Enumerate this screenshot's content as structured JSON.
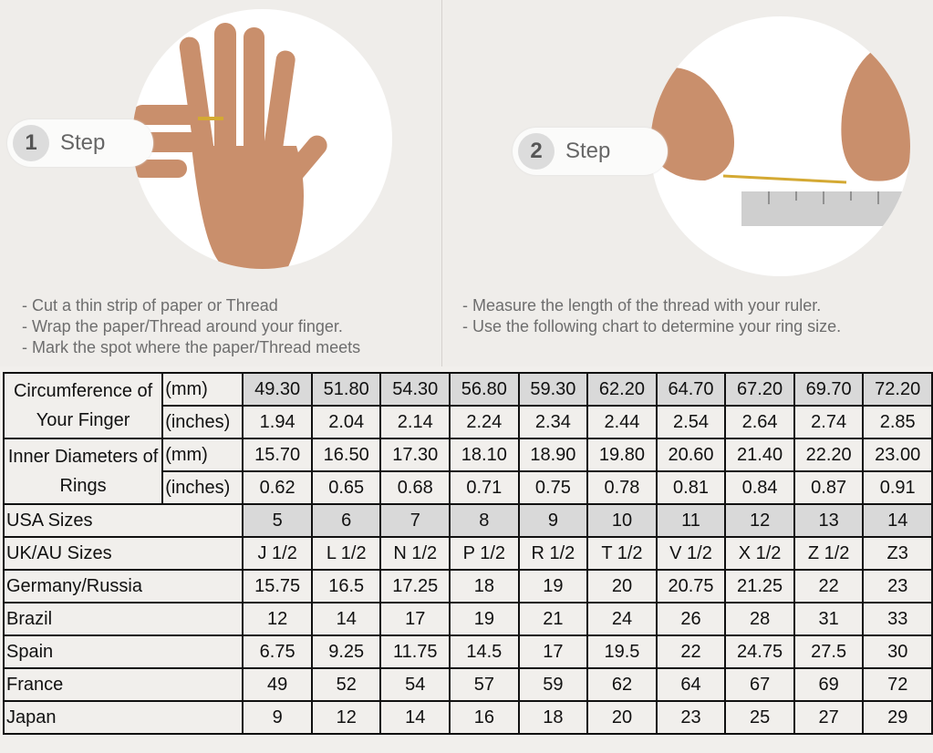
{
  "steps": [
    {
      "number": "1",
      "label": "Step",
      "instructions": [
        "Cut a thin strip of paper or Thread",
        "Wrap the paper/Thread around your finger.",
        "Mark the spot where the paper/Thread meets"
      ]
    },
    {
      "number": "2",
      "label": "Step",
      "instructions": [
        "Measure the length of the thread with your ruler.",
        "Use the following chart to determine your ring size."
      ]
    }
  ],
  "colors": {
    "header_fill": "#d9d9d9",
    "border": "#111111",
    "background": "#f1efec"
  },
  "table": {
    "groups": [
      {
        "label": "Circumference of Your Finger",
        "rows": [
          {
            "unit": "(mm)",
            "values": [
              "49.30",
              "51.80",
              "54.30",
              "56.80",
              "59.30",
              "62.20",
              "64.70",
              "67.20",
              "69.70",
              "72.20"
            ],
            "shaded": true
          },
          {
            "unit": "(inches)",
            "values": [
              "1.94",
              "2.04",
              "2.14",
              "2.24",
              "2.34",
              "2.44",
              "2.54",
              "2.64",
              "2.74",
              "2.85"
            ]
          }
        ]
      },
      {
        "label": "Inner Diameters of Rings",
        "rows": [
          {
            "unit": "(mm)",
            "values": [
              "15.70",
              "16.50",
              "17.30",
              "18.10",
              "18.90",
              "19.80",
              "20.60",
              "21.40",
              "22.20",
              "23.00"
            ]
          },
          {
            "unit": "(inches)",
            "values": [
              "0.62",
              "0.65",
              "0.68",
              "0.71",
              "0.75",
              "0.78",
              "0.81",
              "0.84",
              "0.87",
              "0.91"
            ]
          }
        ]
      }
    ],
    "rows": [
      {
        "label": "USA Sizes",
        "values": [
          "5",
          "6",
          "7",
          "8",
          "9",
          "10",
          "11",
          "12",
          "13",
          "14"
        ],
        "shaded": true
      },
      {
        "label": "UK/AU Sizes",
        "values": [
          "J 1/2",
          "L 1/2",
          "N 1/2",
          "P 1/2",
          "R 1/2",
          "T 1/2",
          "V 1/2",
          "X 1/2",
          "Z 1/2",
          "Z3"
        ]
      },
      {
        "label": "Germany/Russia",
        "values": [
          "15.75",
          "16.5",
          "17.25",
          "18",
          "19",
          "20",
          "20.75",
          "21.25",
          "22",
          "23"
        ]
      },
      {
        "label": "Brazil",
        "values": [
          "12",
          "14",
          "17",
          "19",
          "21",
          "24",
          "26",
          "28",
          "31",
          "33"
        ]
      },
      {
        "label": "Spain",
        "values": [
          "6.75",
          "9.25",
          "11.75",
          "14.5",
          "17",
          "19.5",
          "22",
          "24.75",
          "27.5",
          "30"
        ]
      },
      {
        "label": "France",
        "values": [
          "49",
          "52",
          "54",
          "57",
          "59",
          "62",
          "64",
          "67",
          "69",
          "72"
        ]
      },
      {
        "label": "Japan",
        "values": [
          "9",
          "12",
          "14",
          "16",
          "18",
          "20",
          "23",
          "25",
          "27",
          "29"
        ]
      }
    ]
  }
}
